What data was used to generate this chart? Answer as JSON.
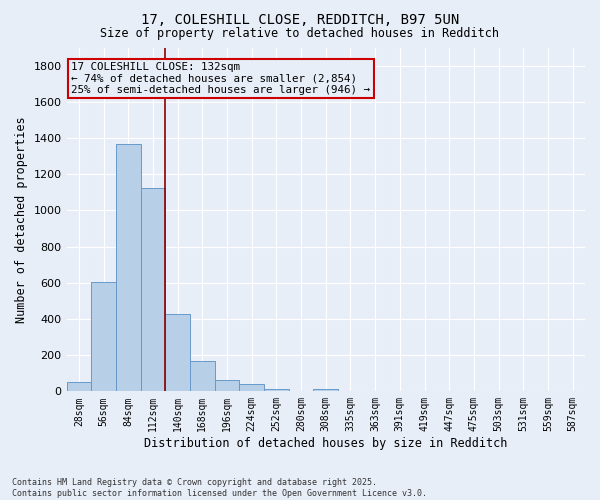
{
  "title_line1": "17, COLESHILL CLOSE, REDDITCH, B97 5UN",
  "title_line2": "Size of property relative to detached houses in Redditch",
  "xlabel": "Distribution of detached houses by size in Redditch",
  "ylabel": "Number of detached properties",
  "footnote_line1": "Contains HM Land Registry data © Crown copyright and database right 2025.",
  "footnote_line2": "Contains public sector information licensed under the Open Government Licence v3.0.",
  "bar_labels": [
    "28sqm",
    "56sqm",
    "84sqm",
    "112sqm",
    "140sqm",
    "168sqm",
    "196sqm",
    "224sqm",
    "252sqm",
    "280sqm",
    "308sqm",
    "335sqm",
    "363sqm",
    "391sqm",
    "419sqm",
    "447sqm",
    "475sqm",
    "503sqm",
    "531sqm",
    "559sqm",
    "587sqm"
  ],
  "bar_values": [
    50,
    605,
    1365,
    1125,
    430,
    170,
    65,
    40,
    15,
    0,
    15,
    0,
    0,
    0,
    0,
    0,
    0,
    0,
    0,
    0,
    0
  ],
  "bar_color": "#b8cfe8",
  "bar_edge_color": "#6699cc",
  "background_color": "#e8eef8",
  "grid_color": "#ffffff",
  "vline_x": 3.5,
  "vline_color": "#8b0000",
  "annotation_text": "17 COLESHILL CLOSE: 132sqm\n← 74% of detached houses are smaller (2,854)\n25% of semi-detached houses are larger (946) →",
  "annotation_box_color": "#cc0000",
  "ylim": [
    0,
    1900
  ],
  "yticks": [
    0,
    200,
    400,
    600,
    800,
    1000,
    1200,
    1400,
    1600,
    1800
  ]
}
